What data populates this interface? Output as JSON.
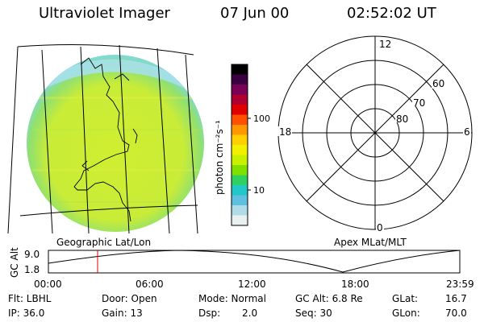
{
  "header": {
    "title": "Ultraviolet Imager",
    "date": "07 Jun 00",
    "time": "02:52:02 UT"
  },
  "colorbar": {
    "unit_label": "photon cm⁻²s⁻¹",
    "tick_labels": [
      "100",
      "10"
    ],
    "colors": [
      "#000000",
      "#3a0040",
      "#7a0058",
      "#b00030",
      "#e00000",
      "#ff5000",
      "#ff9800",
      "#ffd000",
      "#f0f000",
      "#c8f000",
      "#80e000",
      "#30d060",
      "#20c8c8",
      "#60c0e0",
      "#b0dce8",
      "#e8f0f0"
    ]
  },
  "earth_image": {
    "label": "Geographic Lat/Lon",
    "main_color": "#d8f028",
    "limb_color": "#a8e0f0"
  },
  "polar_plot": {
    "label": "Apex MLat/MLT",
    "mlt_labels": {
      "top": "12",
      "left": "18",
      "right": "6",
      "bottom": "0"
    },
    "lat_labels": [
      "60",
      "70",
      "80"
    ]
  },
  "altitude_plot": {
    "ylabel": "GC Alt",
    "ytick_labels": [
      "9.0",
      "1.8"
    ],
    "xtick_labels": [
      "00:00",
      "06:00",
      "12:00",
      "18:00",
      "23:59"
    ],
    "marker_time_hours": 2.87,
    "marker_color": "#e00000"
  },
  "info": {
    "flt": "Flt: LBHL",
    "ip": "IP: 36.0",
    "door": "Door: Open",
    "gain": "Gain: 13",
    "mode": "Mode: Normal",
    "dsp_label": "Dsp:",
    "dsp_value": "2.0",
    "gcalt": "GC Alt: 6.8 Re",
    "seq": "Seq: 30",
    "glat_label": "GLat:",
    "glat_value": "16.7",
    "glon_label": "GLon:",
    "glon_value": "70.0"
  }
}
